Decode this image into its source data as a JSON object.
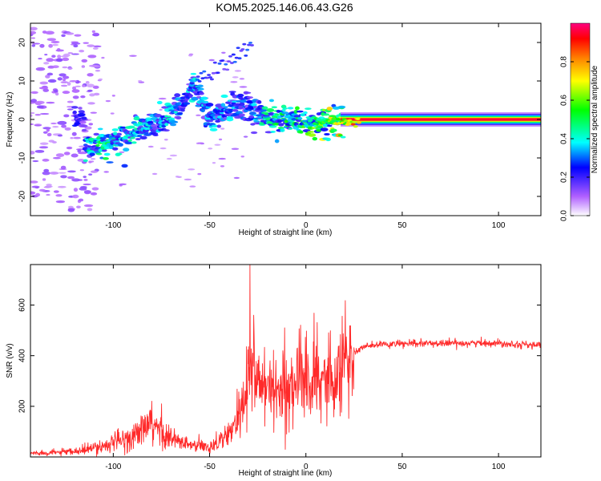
{
  "page": {
    "title": "KOM5.2025.146.06.43.G26"
  },
  "chart_data": [
    {
      "type": "heatmap",
      "title": "KOM5.2025.146.06.43.G26",
      "xlabel": "Height of straight line (km)",
      "ylabel": "Frequency (Hz)",
      "xlim": [
        -143,
        122
      ],
      "ylim": [
        -25,
        25
      ],
      "xticks": [
        -100,
        -50,
        0,
        50,
        100
      ],
      "yticks": [
        -20,
        -10,
        0,
        10,
        20
      ],
      "colorbar": {
        "label": "Normalized spectral amplitude",
        "range": [
          0,
          1
        ],
        "ticks": [
          0.0,
          0.2,
          0.4,
          0.6,
          0.8
        ],
        "tick_labels": [
          "0.0",
          "0.2",
          "0.4",
          "0.6",
          "0.8"
        ],
        "colormap": [
          "#ffffff",
          "#b060ff",
          "#0000ff",
          "#00ffff",
          "#00ff00",
          "#ffff00",
          "#ff8000",
          "#ff0000",
          "#ff0080"
        ]
      },
      "ridge": {
        "description_points": [
          {
            "x": -115,
            "f": -8,
            "a": 0.35
          },
          {
            "x": -105,
            "f": -6.5,
            "a": 0.45
          },
          {
            "x": -95,
            "f": -5,
            "a": 0.35
          },
          {
            "x": -85,
            "f": -3,
            "a": 0.35
          },
          {
            "x": -78,
            "f": -1,
            "a": 0.3
          },
          {
            "x": -70,
            "f": 0.5,
            "a": 0.35
          },
          {
            "x": -63,
            "f": 5,
            "a": 0.3
          },
          {
            "x": -58,
            "f": 9,
            "a": 0.35
          },
          {
            "x": -50,
            "f": 0,
            "a": 0.3
          },
          {
            "x": -45,
            "f": 1,
            "a": 0.3
          },
          {
            "x": -38,
            "f": 3.5,
            "a": 0.3
          },
          {
            "x": -30,
            "f": 3,
            "a": 0.25
          },
          {
            "x": -20,
            "f": 0.5,
            "a": 0.4
          },
          {
            "x": -10,
            "f": 0.2,
            "a": 0.45
          },
          {
            "x": 0,
            "f": -1,
            "a": 0.5
          },
          {
            "x": 10,
            "f": -0.5,
            "a": 0.55
          },
          {
            "x": 20,
            "f": -0.2,
            "a": 0.7
          },
          {
            "x": 30,
            "f": 0,
            "a": 0.85
          },
          {
            "x": 50,
            "f": 0,
            "a": 0.95
          },
          {
            "x": 80,
            "f": 0,
            "a": 0.95
          },
          {
            "x": 122,
            "f": 0,
            "a": 0.95
          }
        ]
      }
    },
    {
      "type": "line",
      "xlabel": "Height of straight line (km)",
      "ylabel": "SNR (v/v)",
      "xlim": [
        -143,
        122
      ],
      "ylim": [
        0,
        760
      ],
      "xticks": [
        -100,
        -50,
        0,
        50,
        100
      ],
      "yticks": [
        200,
        400,
        600
      ],
      "color": "#ff2a2a",
      "envelope_points": [
        {
          "x": -143,
          "y": 15
        },
        {
          "x": -120,
          "y": 20
        },
        {
          "x": -110,
          "y": 35
        },
        {
          "x": -100,
          "y": 55
        },
        {
          "x": -90,
          "y": 80
        },
        {
          "x": -82,
          "y": 120
        },
        {
          "x": -76,
          "y": 110
        },
        {
          "x": -70,
          "y": 70
        },
        {
          "x": -60,
          "y": 45
        },
        {
          "x": -50,
          "y": 40
        },
        {
          "x": -40,
          "y": 90
        },
        {
          "x": -33,
          "y": 190
        },
        {
          "x": -29,
          "y": 350
        },
        {
          "x": -25,
          "y": 280
        },
        {
          "x": -20,
          "y": 260
        },
        {
          "x": -15,
          "y": 250
        },
        {
          "x": -10,
          "y": 280
        },
        {
          "x": -5,
          "y": 300
        },
        {
          "x": 0,
          "y": 300
        },
        {
          "x": 5,
          "y": 300
        },
        {
          "x": 10,
          "y": 310
        },
        {
          "x": 15,
          "y": 340
        },
        {
          "x": 20,
          "y": 370
        },
        {
          "x": 25,
          "y": 410
        },
        {
          "x": 30,
          "y": 435
        },
        {
          "x": 40,
          "y": 445
        },
        {
          "x": 60,
          "y": 448
        },
        {
          "x": 80,
          "y": 450
        },
        {
          "x": 100,
          "y": 450
        },
        {
          "x": 122,
          "y": 440
        }
      ],
      "peaks": [
        {
          "x": -29,
          "y": 760
        },
        {
          "x": -27,
          "y": 560
        },
        {
          "x": -11,
          "y": 510
        },
        {
          "x": -12,
          "y": 420
        },
        {
          "x": -80,
          "y": 220
        },
        {
          "x": -75,
          "y": 210
        }
      ]
    }
  ]
}
